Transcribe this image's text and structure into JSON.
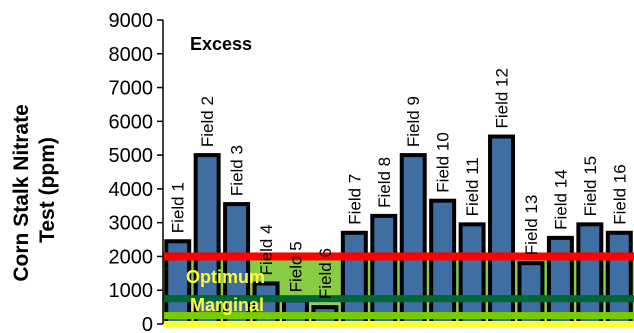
{
  "chart_data": {
    "type": "bar",
    "ylabel": "Corn Stalk Nitrate Test (ppm)",
    "ylabel_lines": [
      "Corn Stalk Nitrate",
      "Test (ppm)"
    ],
    "ylim": [
      0,
      9000
    ],
    "yticks": [
      "0",
      "1000",
      "2000",
      "3000",
      "4000",
      "5000",
      "6000",
      "7000",
      "8000",
      "9000"
    ],
    "categories": [
      "Field 1",
      "Field 2",
      "Field 3",
      "Field 4",
      "Field 5",
      "Field 6",
      "Field 7",
      "Field 8",
      "Field 9",
      "Field 10",
      "Field 11",
      "Field 12",
      "Field 13",
      "Field 14",
      "Field 15",
      "Field 16"
    ],
    "values": [
      2450,
      5000,
      3550,
      1200,
      700,
      500,
      2700,
      3200,
      5000,
      3650,
      2950,
      5550,
      1800,
      2550,
      2950,
      2700
    ],
    "zones": {
      "excess": {
        "label": "Excess",
        "threshold": 2000
      },
      "optimum": {
        "label": "Optimum",
        "range": [
          750,
          2000
        ],
        "text_color": "#ffff33"
      },
      "marginal": {
        "label": "Marginal",
        "range": [
          250,
          750
        ],
        "text_color": "#ffff33"
      }
    },
    "threshold_lines": [
      {
        "value": 2000,
        "color": "#ff0000"
      },
      {
        "value": 750,
        "color": "#006633"
      },
      {
        "value": 250,
        "color": "#77cc00"
      },
      {
        "value": 0,
        "color": "#ffff33"
      }
    ],
    "colors": {
      "bar_fill": "#3f6ea3",
      "bar_stroke": "#000000",
      "axis": "#000000"
    },
    "grid": false,
    "legend": "none"
  }
}
